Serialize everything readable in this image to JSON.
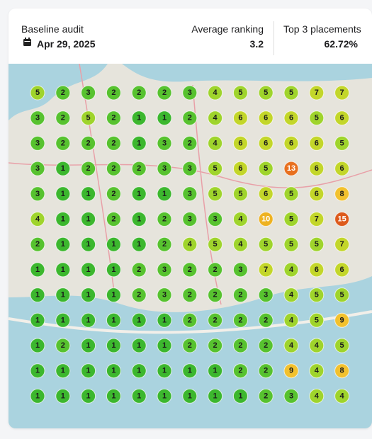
{
  "header": {
    "title": "Baseline audit",
    "date": "Apr 29, 2025",
    "average_label": "Average ranking",
    "average_value": 3.2,
    "top3_label": "Top 3 placements",
    "top3_value": "62.72%"
  },
  "grid": [
    [
      5,
      2,
      3,
      2,
      2,
      2,
      3,
      4,
      5,
      5,
      5,
      7,
      7
    ],
    [
      3,
      2,
      5,
      2,
      1,
      1,
      2,
      4,
      6,
      6,
      6,
      5,
      6
    ],
    [
      3,
      2,
      2,
      2,
      1,
      3,
      2,
      4,
      6,
      6,
      6,
      6,
      5
    ],
    [
      3,
      1,
      2,
      2,
      2,
      3,
      3,
      5,
      6,
      5,
      13,
      6,
      6
    ],
    [
      3,
      1,
      1,
      2,
      1,
      1,
      3,
      5,
      5,
      6,
      5,
      6,
      8
    ],
    [
      4,
      1,
      1,
      2,
      1,
      2,
      3,
      3,
      4,
      10,
      5,
      7,
      15
    ],
    [
      2,
      1,
      1,
      1,
      1,
      2,
      4,
      5,
      4,
      5,
      5,
      5,
      7
    ],
    [
      1,
      1,
      1,
      1,
      2,
      3,
      2,
      2,
      3,
      7,
      4,
      6,
      6
    ],
    [
      1,
      1,
      1,
      1,
      2,
      3,
      2,
      2,
      2,
      3,
      4,
      5,
      5
    ],
    [
      1,
      1,
      1,
      1,
      1,
      1,
      2,
      2,
      2,
      2,
      4,
      5,
      9
    ],
    [
      1,
      2,
      1,
      1,
      1,
      1,
      2,
      2,
      2,
      2,
      4,
      4,
      5
    ],
    [
      1,
      1,
      1,
      1,
      1,
      1,
      1,
      1,
      2,
      2,
      9,
      4,
      8
    ],
    [
      1,
      1,
      1,
      1,
      1,
      1,
      1,
      1,
      1,
      2,
      3,
      4,
      4
    ]
  ]
}
